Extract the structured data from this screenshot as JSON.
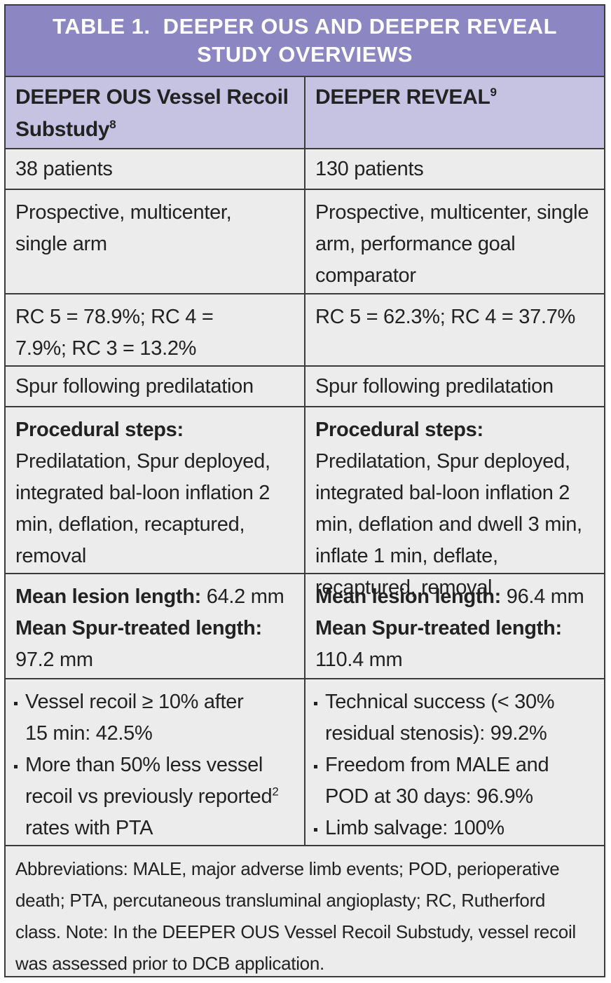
{
  "title": {
    "line1": "TABLE 1.  DEEPER OUS AND DEEPER REVEAL",
    "line2": "STUDY OVERVIEWS"
  },
  "columns": [
    {
      "name": "DEEPER OUS Vessel Recoil Substudy",
      "ref": "8"
    },
    {
      "name": "DEEPER REVEAL",
      "ref": "9"
    }
  ],
  "rows": {
    "patients": [
      "38 patients",
      "130 patients"
    ],
    "design": [
      "Prospective, multicenter, single arm",
      "Prospective, multicenter, single arm, performance goal comparator"
    ],
    "rc": [
      "RC 5 = 78.9%; RC 4 = 7.9%; RC 3 = 13.2%",
      "RC 5 = 62.3%; RC 4 = 37.7%"
    ],
    "spur": [
      "Spur following predilatation",
      "Spur following predilatation"
    ],
    "steps": {
      "label": "Procedural steps:",
      "left": " Predilatation, Spur deployed, integrated bal-loon inflation 2 min, deflation, recaptured, removal",
      "right": " Predilatation, Spur deployed, integrated bal-loon inflation 2 min, deflation and dwell 3 min, inflate 1 min, deflate, recaptured, removal"
    },
    "lengths": {
      "lesion_label": "Mean lesion length:",
      "treated_label": "Mean Spur-treated length:",
      "left_lesion": " 64.2 mm",
      "left_treated": "97.2 mm",
      "right_lesion": " 96.4 mm",
      "right_treated": "110.4 mm"
    },
    "outcomes": {
      "left": [
        {
          "text": "Vessel recoil ≥ 10% after 15 min: 42.5%"
        },
        {
          "text_a": "More than 50% less vessel recoil vs previously reported",
          "ref": "2",
          "text_b": " rates with PTA"
        }
      ],
      "right": [
        "Technical success (< 30% residual stenosis): 99.2%",
        "Freedom from MALE and POD at 30 days: 96.9%",
        "Limb salvage: 100%"
      ]
    }
  },
  "footnote": "Abbreviations: MALE, major adverse limb events; POD, perioperative death; PTA, percutaneous transluminal angioplasty; RC, Rutherford class. Note: In the DEEPER OUS Vessel Recoil Substudy, vessel recoil was assessed prior to DCB application.",
  "colors": {
    "title_bg": "#8c86c2",
    "header_bg": "#c6c2e2",
    "body_bg": "#ececec"
  }
}
